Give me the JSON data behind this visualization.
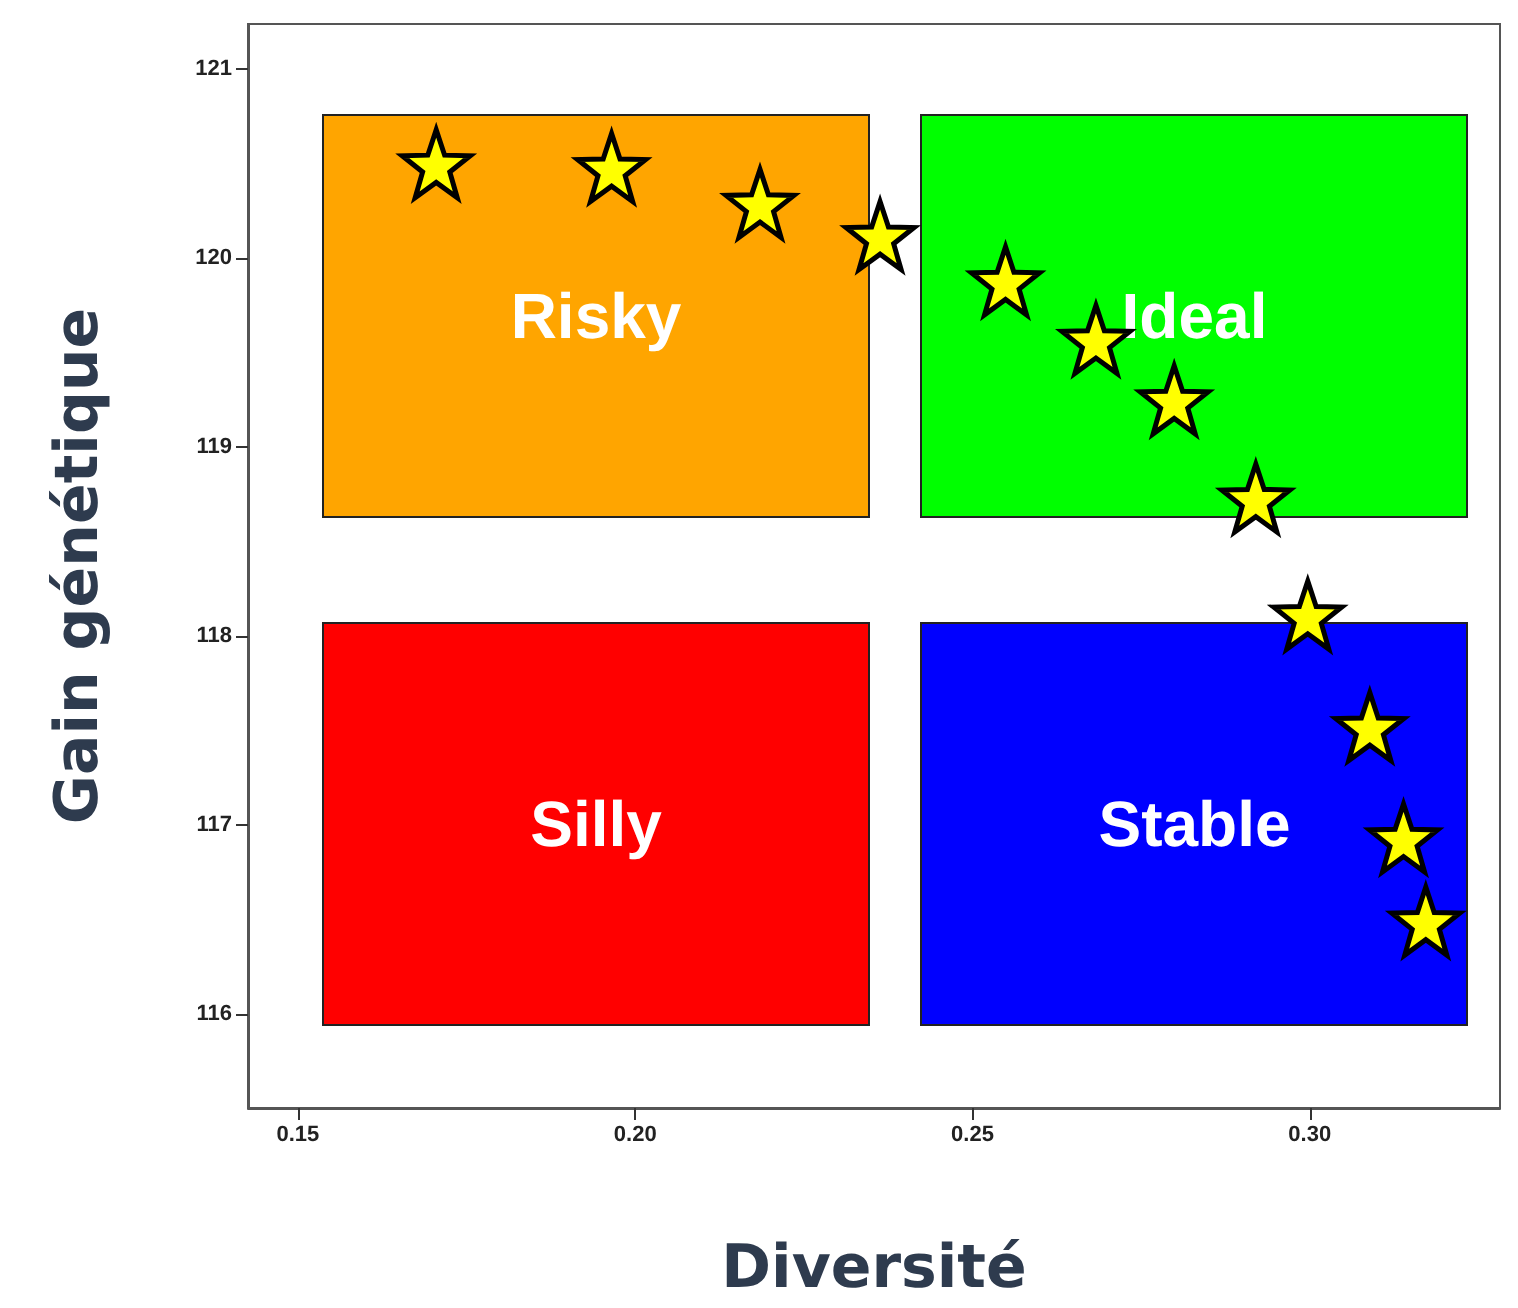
{
  "chart_data": {
    "type": "scatter",
    "xlabel": "Diversité",
    "ylabel": "Gain génétique",
    "x": [
      0.1705,
      0.1965,
      0.2185,
      0.2363,
      0.2549,
      0.2683,
      0.2799,
      0.292,
      0.2997,
      0.3089,
      0.3139,
      0.3172
    ],
    "values": [
      120.5,
      120.48,
      120.29,
      120.12,
      119.88,
      119.57,
      119.25,
      118.73,
      118.11,
      117.52,
      116.93,
      116.49
    ],
    "color": "#ffff00",
    "marker": "star",
    "grid": false,
    "xlim": [
      0.1426,
      0.3282
    ],
    "ylim": [
      115.5,
      121.24
    ],
    "xticks": [
      {
        "value": 0.15,
        "label": "0.15"
      },
      {
        "value": 0.2,
        "label": "0.20"
      },
      {
        "value": 0.25,
        "label": "0.25"
      },
      {
        "value": 0.3,
        "label": "0.30"
      }
    ],
    "yticks": [
      116,
      117,
      118,
      119,
      120,
      121
    ],
    "annotations": [
      "Risky",
      "Ideal",
      "Silly",
      "Stable"
    ]
  }
}
